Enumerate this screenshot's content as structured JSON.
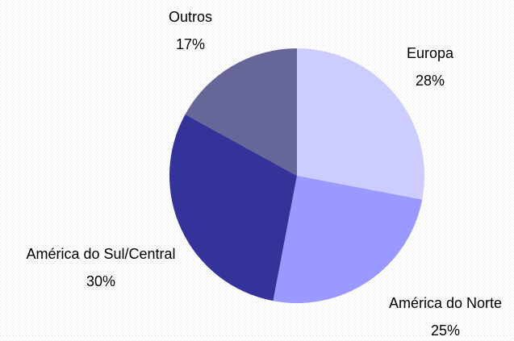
{
  "chart_data": {
    "type": "pie",
    "categories": [
      "Europa",
      "América do Norte",
      "América do Sul/Central",
      "Outros"
    ],
    "values": [
      28,
      25,
      30,
      17
    ],
    "value_labels": [
      "28%",
      "25%",
      "30%",
      "17%"
    ],
    "colors": [
      "#ccccff",
      "#9999ff",
      "#333399",
      "#666699"
    ]
  }
}
